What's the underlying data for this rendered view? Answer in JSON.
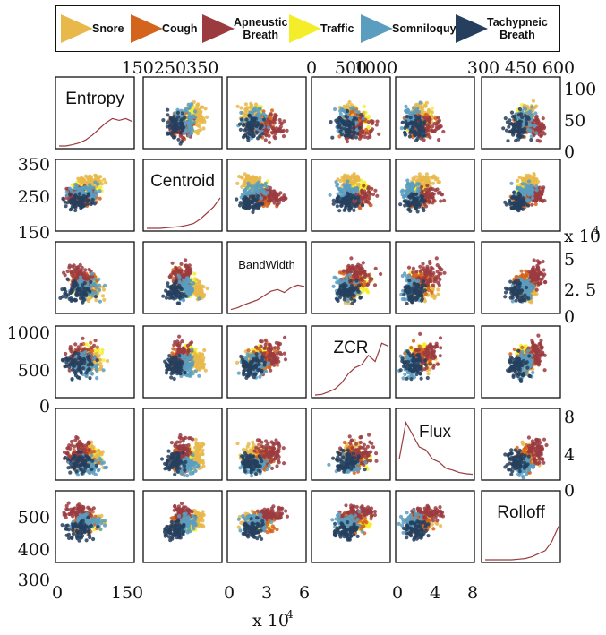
{
  "legend": {
    "items": [
      {
        "label": "Snore",
        "color": "#E8B94A"
      },
      {
        "label": "Cough",
        "color": "#D4631C"
      },
      {
        "label": "Apneustic Breath",
        "line1": "Apneustic",
        "line2": "Breath",
        "color": "#9B3B3F"
      },
      {
        "label": "Traffic",
        "color": "#F4EE2A"
      },
      {
        "label": "Somniloquy",
        "color": "#5B9DBF"
      },
      {
        "label": "Tachypneic Breath",
        "line1": "Tachypneic",
        "line2": "Breath",
        "color": "#263F5E"
      }
    ]
  },
  "chart_data": {
    "type": "scatter",
    "subtype": "scatter-matrix",
    "variables": [
      "Entropy",
      "Centroid",
      "BandWidth",
      "ZCR",
      "Flux",
      "Rolloff"
    ],
    "series": [
      {
        "name": "Snore",
        "color": "#E8B94A"
      },
      {
        "name": "Cough",
        "color": "#D4631C"
      },
      {
        "name": "Apneustic Breath",
        "color": "#9B3B3F"
      },
      {
        "name": "Traffic",
        "color": "#F4EE2A"
      },
      {
        "name": "Somniloquy",
        "color": "#5B9DBF"
      },
      {
        "name": "Tachypneic Breath",
        "color": "#263F5E"
      }
    ],
    "ranges": {
      "Entropy": [
        0,
        150
      ],
      "Centroid": [
        150,
        350
      ],
      "BandWidth": [
        0,
        60000
      ],
      "ZCR": [
        0,
        1000
      ],
      "Flux": [
        0,
        8
      ],
      "Rolloff": [
        300,
        600
      ]
    },
    "axis_ticks": {
      "top_centroid": [
        "150",
        "250",
        "350"
      ],
      "top_zcr": [
        "0",
        "500",
        "1000"
      ],
      "top_rolloff": [
        "300",
        "450",
        "600"
      ],
      "right_entropy": [
        "100",
        "50",
        "0"
      ],
      "right_bandwidth": [
        "5",
        "2. 5",
        "0"
      ],
      "right_bandwidth_exp": "x 10",
      "right_bandwidth_exp_sup": "4",
      "right_flux": [
        "8",
        "4",
        "0"
      ],
      "left_centroid": [
        "350",
        "250",
        "150"
      ],
      "left_zcr": [
        "1000",
        "500",
        "0"
      ],
      "left_rolloff": [
        "500",
        "400",
        "300"
      ],
      "bottom_entropy": [
        "0",
        "150"
      ],
      "bottom_bandwidth": [
        "0",
        "3",
        "6"
      ],
      "bottom_bandwidth_exp": "x 10",
      "bottom_bandwidth_exp_sup": "4",
      "bottom_flux": [
        "0",
        "4",
        "8"
      ]
    },
    "diagonal_density_shape": {
      "Entropy": [
        0,
        0,
        0.02,
        0.05,
        0.1,
        0.18,
        0.28,
        0.38,
        0.45,
        0.42,
        0.45,
        0.4
      ],
      "Centroid": [
        0,
        0,
        0,
        0.01,
        0.02,
        0.03,
        0.05,
        0.08,
        0.15,
        0.25,
        0.35,
        0.5
      ],
      "BandWidth": [
        0.02,
        0.05,
        0.1,
        0.14,
        0.18,
        0.25,
        0.32,
        0.35,
        0.3,
        0.38,
        0.42,
        0.4
      ],
      "ZCR": [
        0,
        0.01,
        0.05,
        0.1,
        0.2,
        0.35,
        0.45,
        0.5,
        0.65,
        0.55,
        0.85,
        0.8
      ],
      "Flux": [
        0.3,
        0.9,
        0.7,
        0.5,
        0.45,
        0.3,
        0.25,
        0.15,
        0.12,
        0.08,
        0.06,
        0.05
      ],
      "Rolloff": [
        0,
        0,
        0,
        0,
        0,
        0.01,
        0.02,
        0.05,
        0.1,
        0.15,
        0.3,
        0.55
      ]
    }
  }
}
